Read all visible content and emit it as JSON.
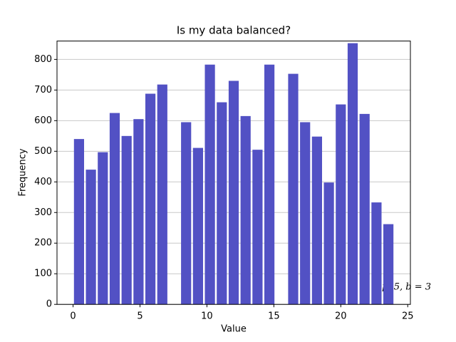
{
  "chart_data": {
    "type": "histogram",
    "title": "Is my data balanced?",
    "xlabel": "Value",
    "ylabel": "Frequency",
    "annotation": "μ15, b = 3",
    "bins": [
      0,
      0.889,
      1.778,
      2.667,
      3.556,
      4.444,
      5.333,
      6.222,
      7.111,
      8,
      8.889,
      9.778,
      10.667,
      11.556,
      12.444,
      13.333,
      14.222,
      15.111,
      16,
      16.889,
      17.778,
      18.667,
      19.556,
      20.444,
      21.333,
      22.222,
      23.111,
      24
    ],
    "values": [
      540,
      440,
      497,
      625,
      550,
      605,
      688,
      718,
      0,
      595,
      511,
      783,
      660,
      730,
      615,
      505,
      783,
      0,
      753,
      595,
      548,
      398,
      653,
      853,
      622,
      333,
      262
    ],
    "color": "#5251c4",
    "xlim": [
      -1.2,
      25.2
    ],
    "xticks": [
      0,
      5,
      10,
      15,
      20,
      25
    ],
    "ylim": [
      0,
      860
    ],
    "yticks": [
      0,
      100,
      200,
      300,
      400,
      500,
      600,
      700,
      800
    ],
    "grid": "y"
  }
}
